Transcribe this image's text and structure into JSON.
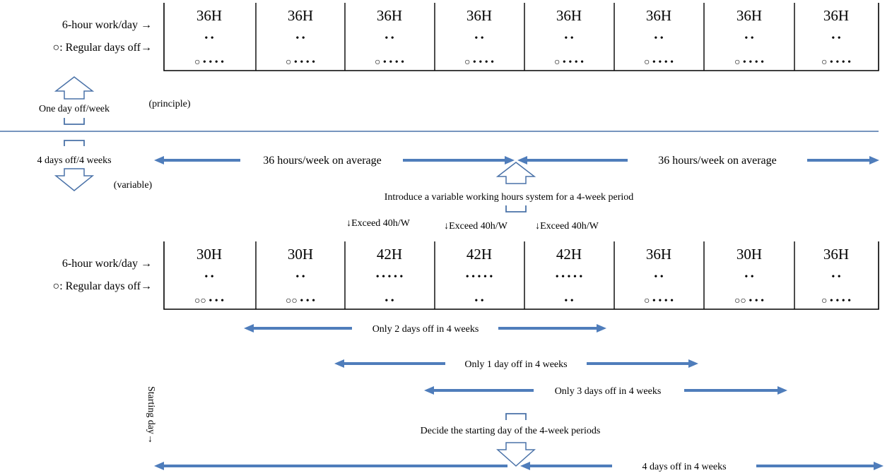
{
  "top_table": {
    "row_label_work": "6-hour work/day →",
    "row_label_off": "○: Regular days off→",
    "weeks": [
      {
        "hours": "36H",
        "mid": "• •",
        "bottom": "○ • • • •"
      },
      {
        "hours": "36H",
        "mid": "• •",
        "bottom": "○ • • • •"
      },
      {
        "hours": "36H",
        "mid": "• •",
        "bottom": "○ • • • •"
      },
      {
        "hours": "36H",
        "mid": "• •",
        "bottom": "○ • • • •"
      },
      {
        "hours": "36H",
        "mid": "• •",
        "bottom": "○ • • • •"
      },
      {
        "hours": "36H",
        "mid": "• •",
        "bottom": "○ • • • •"
      },
      {
        "hours": "36H",
        "mid": "• •",
        "bottom": "○ • • • •"
      },
      {
        "hours": "36H",
        "mid": "• •",
        "bottom": "○ • • • •"
      }
    ]
  },
  "principle": {
    "one_day_off": "One day off/week",
    "tag": "(principle)"
  },
  "variable": {
    "four_days_off": "4 days off/4 weeks",
    "tag": "(variable)"
  },
  "average": {
    "left": "36 hours/week on average",
    "right": "36 hours/week on average"
  },
  "introduce_text": "Introduce a variable working hours system for a 4-week period",
  "exceed": [
    "↓Exceed 40h/W",
    "↓Exceed 40h/W",
    "↓Exceed 40h/W"
  ],
  "bottom_table": {
    "row_label_work": "6-hour work/day →",
    "row_label_off": "○: Regular days off→",
    "weeks": [
      {
        "hours": "30H",
        "mid": "• •",
        "bottom": "○○ • • •"
      },
      {
        "hours": "30H",
        "mid": "• •",
        "bottom": "○○ • • •"
      },
      {
        "hours": "42H",
        "mid": "• • • • •",
        "bottom": "• •"
      },
      {
        "hours": "42H",
        "mid": "• • • • •",
        "bottom": "• •"
      },
      {
        "hours": "42H",
        "mid": "• • • • •",
        "bottom": "• •"
      },
      {
        "hours": "36H",
        "mid": "• •",
        "bottom": "○ • • • •"
      },
      {
        "hours": "30H",
        "mid": "• •",
        "bottom": "○○ • • •"
      },
      {
        "hours": "36H",
        "mid": "• •",
        "bottom": "○ • • • •"
      }
    ]
  },
  "spans": {
    "two_days": "Only 2 days off in 4 weeks",
    "one_day": "Only 1 day off in 4 weeks",
    "three_days": "Only 3 days off in 4 weeks",
    "four_days": "4 days off in 4 weeks"
  },
  "decide_text": "Decide the starting day of the 4-week periods",
  "starting_day": "Starting day→",
  "colors": {
    "arrow": "#4f7dbb",
    "divider": "#4a72a8"
  }
}
